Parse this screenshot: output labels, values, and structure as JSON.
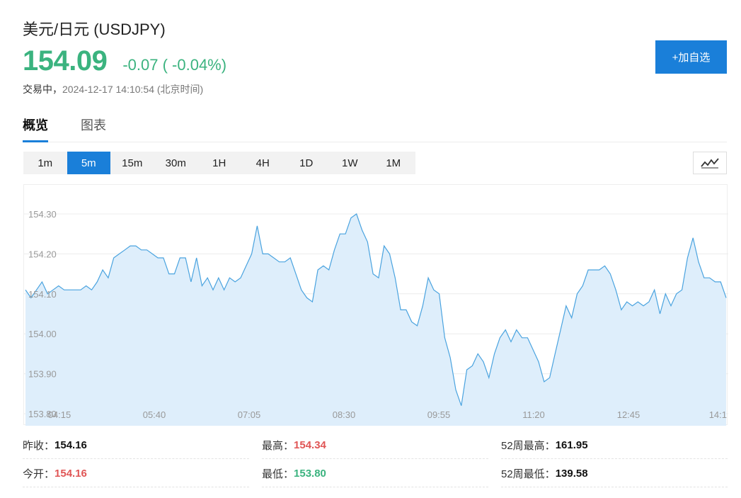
{
  "header": {
    "title": "美元/日元 (USDJPY)",
    "price": "154.09",
    "change": "-0.07 ( -0.04%)",
    "status_label": "交易中，",
    "status_time": "2024-12-17 14:10:54 (北京时间)",
    "add_watchlist": "+加自选"
  },
  "tabs": [
    {
      "label": "概览"
    },
    {
      "label": "图表"
    }
  ],
  "intervals": [
    {
      "label": "1m"
    },
    {
      "label": "5m"
    },
    {
      "label": "15m"
    },
    {
      "label": "30m"
    },
    {
      "label": "1H"
    },
    {
      "label": "4H"
    },
    {
      "label": "1D"
    },
    {
      "label": "1W"
    },
    {
      "label": "1M"
    }
  ],
  "active_interval": "5m",
  "colors": {
    "up": "#e05656",
    "down": "#3bb37f",
    "accent": "#1a7fd9",
    "line": "#4aa3df",
    "area": "#deeefb"
  },
  "icons": {
    "chart_type": "line-chart-icon"
  },
  "chart_data": {
    "type": "area",
    "x_ticks": [
      "04:15",
      "05:40",
      "07:05",
      "08:30",
      "09:55",
      "11:20",
      "12:45",
      "14:1"
    ],
    "y_ticks": [
      "154.30",
      "154.20",
      "154.10",
      "154.00",
      "153.90",
      "153.80"
    ],
    "ylim": [
      153.8,
      154.3
    ],
    "grid": true,
    "values": [
      154.11,
      154.09,
      154.11,
      154.13,
      154.1,
      154.11,
      154.12,
      154.11,
      154.11,
      154.11,
      154.11,
      154.12,
      154.11,
      154.13,
      154.16,
      154.14,
      154.19,
      154.2,
      154.21,
      154.22,
      154.22,
      154.21,
      154.21,
      154.2,
      154.19,
      154.19,
      154.15,
      154.15,
      154.19,
      154.19,
      154.13,
      154.19,
      154.12,
      154.14,
      154.11,
      154.14,
      154.11,
      154.14,
      154.13,
      154.14,
      154.17,
      154.2,
      154.27,
      154.2,
      154.2,
      154.19,
      154.18,
      154.18,
      154.19,
      154.15,
      154.11,
      154.09,
      154.08,
      154.16,
      154.17,
      154.16,
      154.21,
      154.25,
      154.25,
      154.29,
      154.3,
      154.26,
      154.23,
      154.15,
      154.14,
      154.22,
      154.2,
      154.14,
      154.06,
      154.06,
      154.03,
      154.02,
      154.07,
      154.14,
      154.11,
      154.1,
      153.99,
      153.94,
      153.86,
      153.82,
      153.91,
      153.92,
      153.95,
      153.93,
      153.89,
      153.95,
      153.99,
      154.01,
      153.98,
      154.01,
      153.99,
      153.99,
      153.96,
      153.93,
      153.88,
      153.89,
      153.95,
      154.01,
      154.07,
      154.04,
      154.1,
      154.12,
      154.16,
      154.16,
      154.16,
      154.17,
      154.15,
      154.11,
      154.06,
      154.08,
      154.07,
      154.08,
      154.07,
      154.08,
      154.11,
      154.05,
      154.1,
      154.07,
      154.1,
      154.11,
      154.19,
      154.24,
      154.18,
      154.14,
      154.14,
      154.13,
      154.13,
      154.09
    ]
  },
  "stats": {
    "prev_close": {
      "label": "昨收：",
      "value": "154.16"
    },
    "high": {
      "label": "最高：",
      "value": "154.34"
    },
    "high_52w": {
      "label": "52周最高：",
      "value": "161.95"
    },
    "open": {
      "label": "今开：",
      "value": "154.16"
    },
    "low": {
      "label": "最低：",
      "value": "153.80"
    },
    "low_52w": {
      "label": "52周最低：",
      "value": "139.58"
    }
  }
}
